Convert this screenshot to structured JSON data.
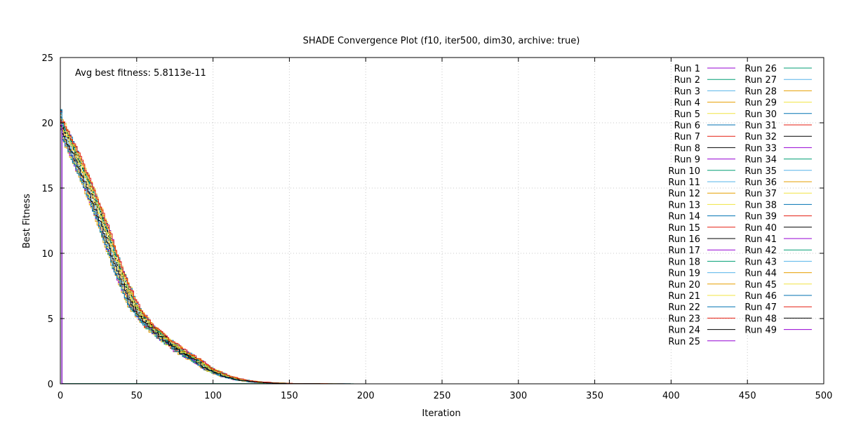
{
  "chart_data": {
    "type": "line",
    "title": "SHADE Convergence Plot (f10, iter500, dim30, archive: true)",
    "xlabel": "Iteration",
    "ylabel": "Best Fitness",
    "xlim": [
      0,
      500
    ],
    "ylim": [
      0,
      25
    ],
    "xticks": [
      "0",
      "50",
      "100",
      "150",
      "200",
      "250",
      "300",
      "350",
      "400",
      "450",
      "500"
    ],
    "yticks": [
      "0",
      "5",
      "10",
      "15",
      "20",
      "25"
    ],
    "grid": true,
    "legend_position": "top-right",
    "annotation": "Avg best fitness: 5.8113e-11",
    "palette": [
      "#9400d3",
      "#009e73",
      "#56b4e9",
      "#e69f00",
      "#f0e442",
      "#0072b2",
      "#e51e10",
      "#000000"
    ],
    "series_names": [
      "Run 1",
      "Run 2",
      "Run 3",
      "Run 4",
      "Run 5",
      "Run 6",
      "Run 7",
      "Run 8",
      "Run 9",
      "Run 10",
      "Run 11",
      "Run 12",
      "Run 13",
      "Run 14",
      "Run 15",
      "Run 16",
      "Run 17",
      "Run 18",
      "Run 19",
      "Run 20",
      "Run 21",
      "Run 22",
      "Run 23",
      "Run 24",
      "Run 25",
      "Run 26",
      "Run 27",
      "Run 28",
      "Run 29",
      "Run 30",
      "Run 31",
      "Run 32",
      "Run 33",
      "Run 34",
      "Run 35",
      "Run 36",
      "Run 37",
      "Run 38",
      "Run 39",
      "Run 40",
      "Run 41",
      "Run 42",
      "Run 43",
      "Run 44",
      "Run 45",
      "Run 46",
      "Run 47",
      "Run 48",
      "Run 49"
    ],
    "typical_curve": {
      "x": [
        0,
        10,
        20,
        30,
        40,
        50,
        60,
        70,
        80,
        90,
        100,
        110,
        120,
        130,
        140,
        150,
        170,
        200,
        220
      ],
      "y": [
        20.4,
        18.0,
        15.3,
        12.2,
        8.8,
        6.0,
        4.5,
        3.5,
        2.6,
        1.9,
        1.1,
        0.6,
        0.3,
        0.15,
        0.07,
        0.03,
        0.01,
        0.0,
        0.0
      ]
    }
  }
}
